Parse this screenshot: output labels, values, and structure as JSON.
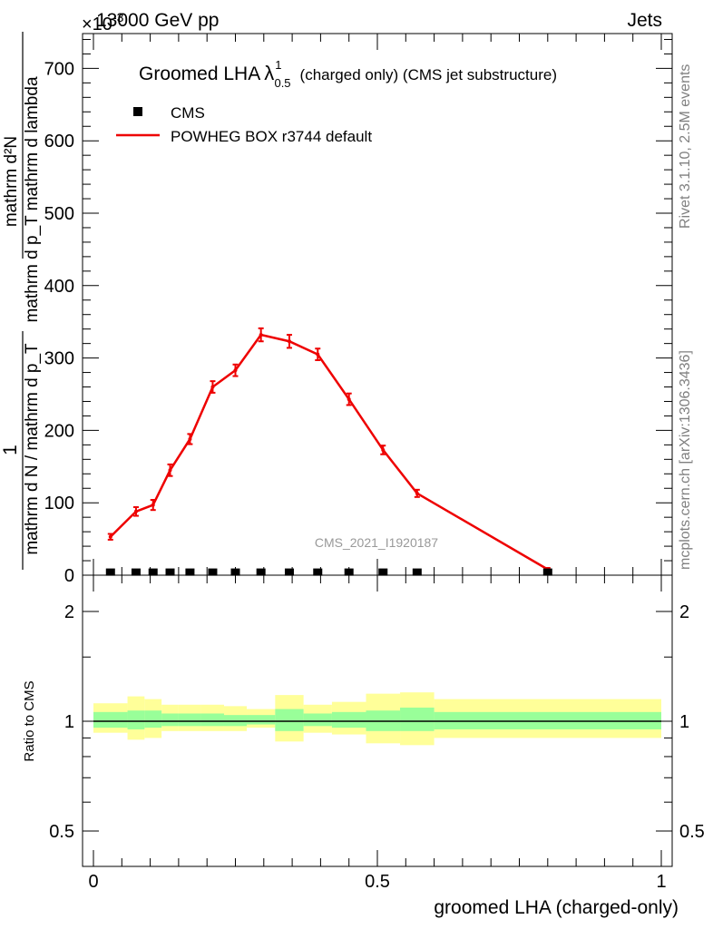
{
  "header": {
    "energy": "13000 GeV pp",
    "category": "Jets",
    "exponent_label": "×10",
    "exponent_power": "-3"
  },
  "side_labels": {
    "rivet": "Rivet 3.1.10,  2.5M events",
    "mcplots": "mcplots.cern.ch [arXiv:1306.3436]"
  },
  "title": {
    "prefix": "Groomed LHA",
    "lambda": "λ",
    "sup": "1",
    "sub": "0.5",
    "suffix": "(charged only) (CMS jet substructure)"
  },
  "legend": {
    "cms": "CMS",
    "mc": "POWHEG BOX r3744 default"
  },
  "watermark": "CMS_2021_I1920187",
  "ylabel_main": {
    "numerator": "1",
    "denominator": "mathrm d N / mathrm d p_T",
    "rhs_top": "mathrm d²N",
    "rhs_bottom": "mathrm d p_T mathrm d lambda"
  },
  "ylabel_ratio": "Ratio to CMS",
  "xlabel": "groomed LHA (charged-only)",
  "colors": {
    "mc": "#ee0000",
    "band_inner": "#99ff99",
    "band_outer": "#ffff99",
    "data": "#000000"
  },
  "chart_data": {
    "type": "line",
    "title": "Groomed LHA λ^1_0.5 (charged only) (CMS jet substructure)",
    "xlabel": "groomed LHA (charged-only)",
    "xlim": [
      0,
      1
    ],
    "main": {
      "ylim": [
        0,
        750
      ],
      "yticks": [
        0,
        100,
        200,
        300,
        400,
        500,
        600,
        700
      ],
      "ytick_labels": [
        "0",
        "100",
        "200",
        "300",
        "400",
        "500",
        "600",
        "700"
      ],
      "scale_note": "×10^-3",
      "series": [
        {
          "name": "POWHEG BOX r3744 default",
          "x": [
            0.03,
            0.075,
            0.105,
            0.135,
            0.17,
            0.21,
            0.25,
            0.295,
            0.345,
            0.395,
            0.45,
            0.51,
            0.57,
            0.8
          ],
          "y": [
            53,
            88,
            97,
            145,
            188,
            260,
            283,
            332,
            323,
            305,
            243,
            173,
            113,
            8
          ],
          "yerr": [
            4,
            6,
            7,
            8,
            7,
            8,
            8,
            9,
            9,
            8,
            8,
            6,
            5,
            2
          ]
        },
        {
          "name": "CMS",
          "x": [
            0.03,
            0.075,
            0.105,
            0.135,
            0.17,
            0.21,
            0.25,
            0.295,
            0.345,
            0.395,
            0.45,
            0.51,
            0.57,
            0.8
          ],
          "y": [
            0.5,
            0.5,
            0.5,
            0.5,
            0.5,
            0.5,
            0.5,
            0.5,
            0.5,
            0.5,
            0.5,
            0.5,
            0.5,
            0.5
          ]
        }
      ]
    },
    "ratio": {
      "ylabel": "Ratio to CMS",
      "ylim": [
        0.4,
        2.4
      ],
      "yticks": [
        0.5,
        1,
        2
      ],
      "ytick_labels": [
        "0.5",
        "1",
        "2"
      ],
      "bins": [
        {
          "x0": 0.0,
          "x1": 0.06,
          "inner": [
            0.96,
            1.06
          ],
          "outer": [
            0.93,
            1.12
          ]
        },
        {
          "x0": 0.06,
          "x1": 0.09,
          "inner": [
            0.95,
            1.07
          ],
          "outer": [
            0.89,
            1.17
          ]
        },
        {
          "x0": 0.09,
          "x1": 0.12,
          "inner": [
            0.96,
            1.07
          ],
          "outer": [
            0.9,
            1.15
          ]
        },
        {
          "x0": 0.12,
          "x1": 0.15,
          "inner": [
            0.97,
            1.05
          ],
          "outer": [
            0.94,
            1.11
          ]
        },
        {
          "x0": 0.15,
          "x1": 0.19,
          "inner": [
            0.97,
            1.05
          ],
          "outer": [
            0.94,
            1.11
          ]
        },
        {
          "x0": 0.19,
          "x1": 0.23,
          "inner": [
            0.97,
            1.05
          ],
          "outer": [
            0.94,
            1.11
          ]
        },
        {
          "x0": 0.23,
          "x1": 0.27,
          "inner": [
            0.97,
            1.04
          ],
          "outer": [
            0.94,
            1.1
          ]
        },
        {
          "x0": 0.27,
          "x1": 0.32,
          "inner": [
            0.98,
            1.04
          ],
          "outer": [
            0.96,
            1.08
          ]
        },
        {
          "x0": 0.32,
          "x1": 0.37,
          "inner": [
            0.94,
            1.08
          ],
          "outer": [
            0.88,
            1.18
          ]
        },
        {
          "x0": 0.37,
          "x1": 0.42,
          "inner": [
            0.97,
            1.05
          ],
          "outer": [
            0.93,
            1.11
          ]
        },
        {
          "x0": 0.42,
          "x1": 0.48,
          "inner": [
            0.96,
            1.06
          ],
          "outer": [
            0.92,
            1.13
          ]
        },
        {
          "x0": 0.48,
          "x1": 0.54,
          "inner": [
            0.94,
            1.07
          ],
          "outer": [
            0.87,
            1.19
          ]
        },
        {
          "x0": 0.54,
          "x1": 0.6,
          "inner": [
            0.94,
            1.09
          ],
          "outer": [
            0.86,
            1.2
          ]
        },
        {
          "x0": 0.6,
          "x1": 1.0,
          "inner": [
            0.95,
            1.06
          ],
          "outer": [
            0.9,
            1.15
          ]
        }
      ],
      "mc_ratio": 1.0
    }
  }
}
